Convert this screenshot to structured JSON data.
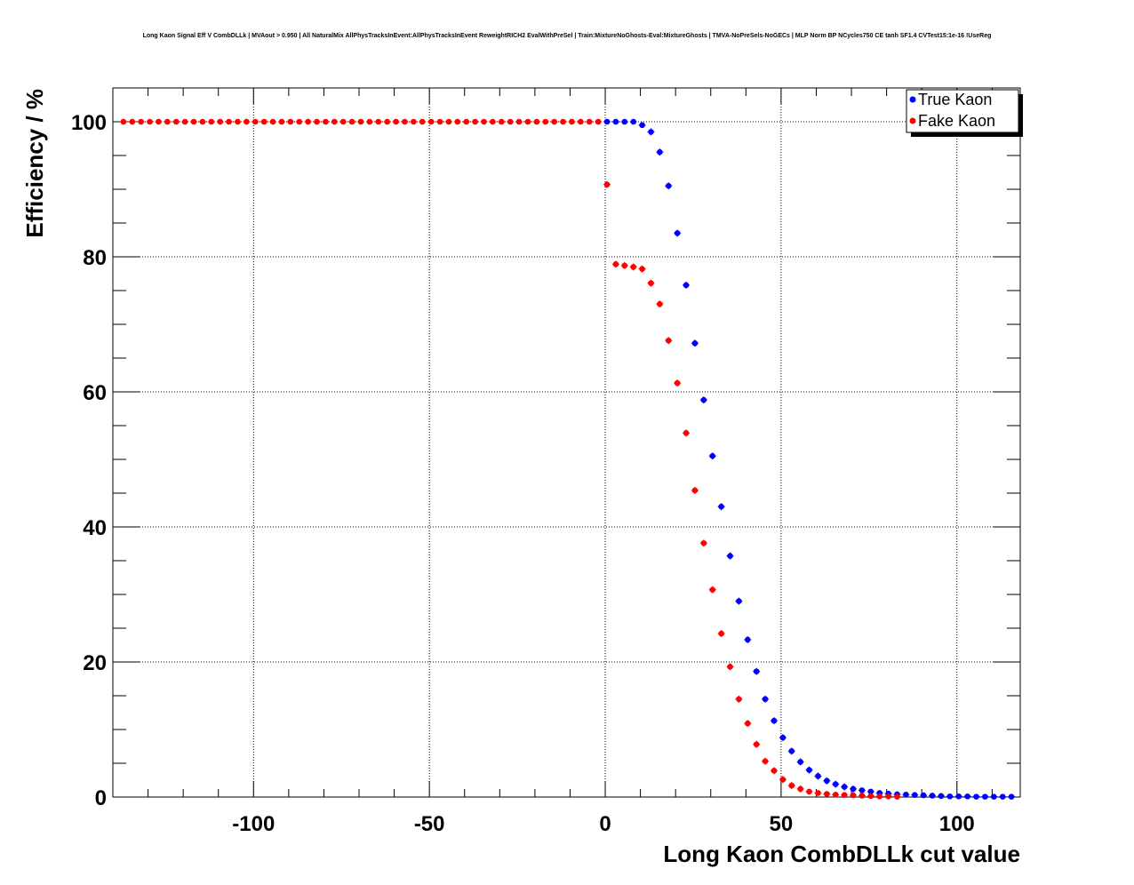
{
  "chart_data": {
    "type": "scatter",
    "title": "Long Kaon Signal Eff V CombDLLk | MVAout > 0.950 | All NaturalMix AllPhysTracksInEvent:AllPhysTracksInEvent ReweightRICH2 EvalWithPreSel | Train:MixtureNoGhosts-Eval:MixtureGhosts | TMVA-NoPreSels-NoGECs | MLP Norm BP NCycles750 CE tanh SF1.4 CVTest15:1e-16 !UseReg",
    "xlabel": "Long Kaon CombDLLk cut value",
    "ylabel": "Efficiency / %",
    "xlim": [
      -140,
      118
    ],
    "ylim": [
      0,
      105
    ],
    "xticks": [
      -100,
      -50,
      0,
      50,
      100
    ],
    "yticks": [
      0,
      20,
      40,
      60,
      80,
      100
    ],
    "grid": true,
    "legend_position": "top-right",
    "series": [
      {
        "name": "True Kaon",
        "color": "#0000ff",
        "x": [
          0.5,
          3,
          5.5,
          8,
          10.5,
          13,
          15.5,
          18,
          20.5,
          23,
          25.5,
          28,
          30.5,
          33,
          35.5,
          38,
          40.5,
          43,
          45.5,
          48,
          50.5,
          53,
          55.5,
          58,
          60.5,
          63,
          65.5,
          68,
          70.5,
          73,
          75.5,
          78,
          80.5,
          83,
          85.5,
          88,
          90.5,
          93,
          95.5,
          98,
          100.5,
          103,
          105.5,
          108,
          110.5,
          113,
          115.5
        ],
        "y": [
          100,
          100,
          100,
          100,
          99.5,
          98.5,
          95.5,
          90.5,
          83.5,
          75.8,
          67.2,
          58.8,
          50.5,
          43,
          35.7,
          29,
          23.3,
          18.6,
          14.5,
          11.3,
          8.8,
          6.8,
          5.2,
          4,
          3.1,
          2.4,
          1.9,
          1.5,
          1.2,
          1,
          0.8,
          0.6,
          0.5,
          0.4,
          0.35,
          0.3,
          0.25,
          0.2,
          0.15,
          0.1,
          0.1,
          0.1,
          0.05,
          0.05,
          0.05,
          0.05,
          0.05
        ]
      },
      {
        "name": "Fake Kaon",
        "color": "#ff0000",
        "x": [
          -137,
          -134.5,
          -132,
          -129.5,
          -127,
          -124.5,
          -122,
          -119.5,
          -117,
          -114.5,
          -112,
          -109.5,
          -107,
          -104.5,
          -102,
          -99.5,
          -97,
          -94.5,
          -92,
          -89.5,
          -87,
          -84.5,
          -82,
          -79.5,
          -77,
          -74.5,
          -72,
          -69.5,
          -67,
          -64.5,
          -62,
          -59.5,
          -57,
          -54.5,
          -52,
          -49.5,
          -47,
          -44.5,
          -42,
          -39.5,
          -37,
          -34.5,
          -32,
          -29.5,
          -27,
          -24.5,
          -22,
          -19.5,
          -17,
          -14.5,
          -12,
          -9.5,
          -7,
          -4.5,
          -2,
          0.5,
          3,
          5.5,
          8,
          10.5,
          13,
          15.5,
          18,
          20.5,
          23,
          25.5,
          28,
          30.5,
          33,
          35.5,
          38,
          40.5,
          43,
          45.5,
          48,
          50.5,
          53,
          55.5,
          58,
          60.5,
          63,
          65.5,
          68,
          70.5,
          73,
          75.5,
          78,
          80.5,
          83
        ],
        "y": [
          100,
          100,
          100,
          100,
          100,
          100,
          100,
          100,
          100,
          100,
          100,
          100,
          100,
          100,
          100,
          100,
          100,
          100,
          100,
          100,
          100,
          100,
          100,
          100,
          100,
          100,
          100,
          100,
          100,
          100,
          100,
          100,
          100,
          100,
          100,
          100,
          100,
          100,
          100,
          100,
          100,
          100,
          100,
          100,
          100,
          100,
          100,
          100,
          100,
          100,
          100,
          100,
          100,
          100,
          100,
          90.7,
          78.9,
          78.7,
          78.5,
          78.2,
          76.1,
          73,
          67.6,
          61.3,
          53.9,
          45.4,
          37.6,
          30.7,
          24.2,
          19.3,
          14.5,
          10.9,
          7.8,
          5.3,
          3.9,
          2.6,
          1.7,
          1.2,
          0.8,
          0.6,
          0.45,
          0.35,
          0.3,
          0.25,
          0.2,
          0.15,
          0.1,
          0.1,
          0.05
        ]
      }
    ]
  }
}
